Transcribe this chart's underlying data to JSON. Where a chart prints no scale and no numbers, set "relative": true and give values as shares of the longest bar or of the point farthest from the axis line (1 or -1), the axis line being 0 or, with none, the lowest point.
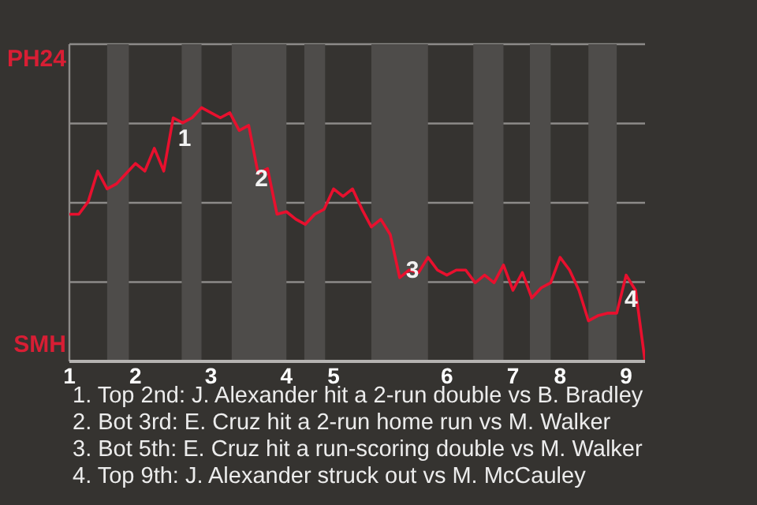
{
  "chart_data": {
    "type": "line",
    "relative": true,
    "categories": [
      "1",
      null,
      null,
      null,
      null,
      null,
      null,
      "2",
      null,
      null,
      null,
      null,
      null,
      null,
      null,
      "3",
      null,
      null,
      null,
      null,
      null,
      null,
      null,
      "4",
      null,
      null,
      null,
      null,
      "5",
      null,
      null,
      null,
      null,
      null,
      null,
      null,
      null,
      null,
      null,
      null,
      "6",
      null,
      null,
      null,
      null,
      null,
      null,
      "7",
      null,
      null,
      null,
      null,
      "8",
      null,
      null,
      null,
      null,
      null,
      null,
      "9",
      null,
      null
    ],
    "series": [
      {
        "color": "#e8102e",
        "values": [
          0.58,
          0.58,
          0.63,
          0.75,
          0.68,
          0.7,
          0.74,
          0.78,
          0.75,
          0.84,
          0.75,
          0.96,
          0.94,
          0.96,
          1,
          0.98,
          0.96,
          0.98,
          0.91,
          0.93,
          0.74,
          0.76,
          0.58,
          0.59,
          0.56,
          0.54,
          0.58,
          0.6,
          0.68,
          0.65,
          0.68,
          0.6,
          0.53,
          0.56,
          0.5,
          0.33,
          0.36,
          0.35,
          0.41,
          0.36,
          0.34,
          0.36,
          0.36,
          0.31,
          0.34,
          0.31,
          0.38,
          0.28,
          0.35,
          0.25,
          0.29,
          0.31,
          0.41,
          0.36,
          0.28,
          0.16,
          0.18,
          0.19,
          0.19,
          0.34,
          0.28,
          0
        ]
      }
    ],
    "grid": "y",
    "line_style": "solid",
    "marker": "none",
    "annotations": [
      "PH24",
      "SMH",
      "1",
      "2",
      "3",
      "4",
      "1. Top 2nd: J. Alexander hit a 2-run double vs B. Bradley",
      "2. Bot 3rd: E. Cruz hit a 2-run home run vs M. Walker",
      "3. Bot 5th: E. Cruz hit a run-scoring double vs M. Walker",
      "4. Top 9th: J. Alexander struck out vs M. McCauley"
    ]
  }
}
